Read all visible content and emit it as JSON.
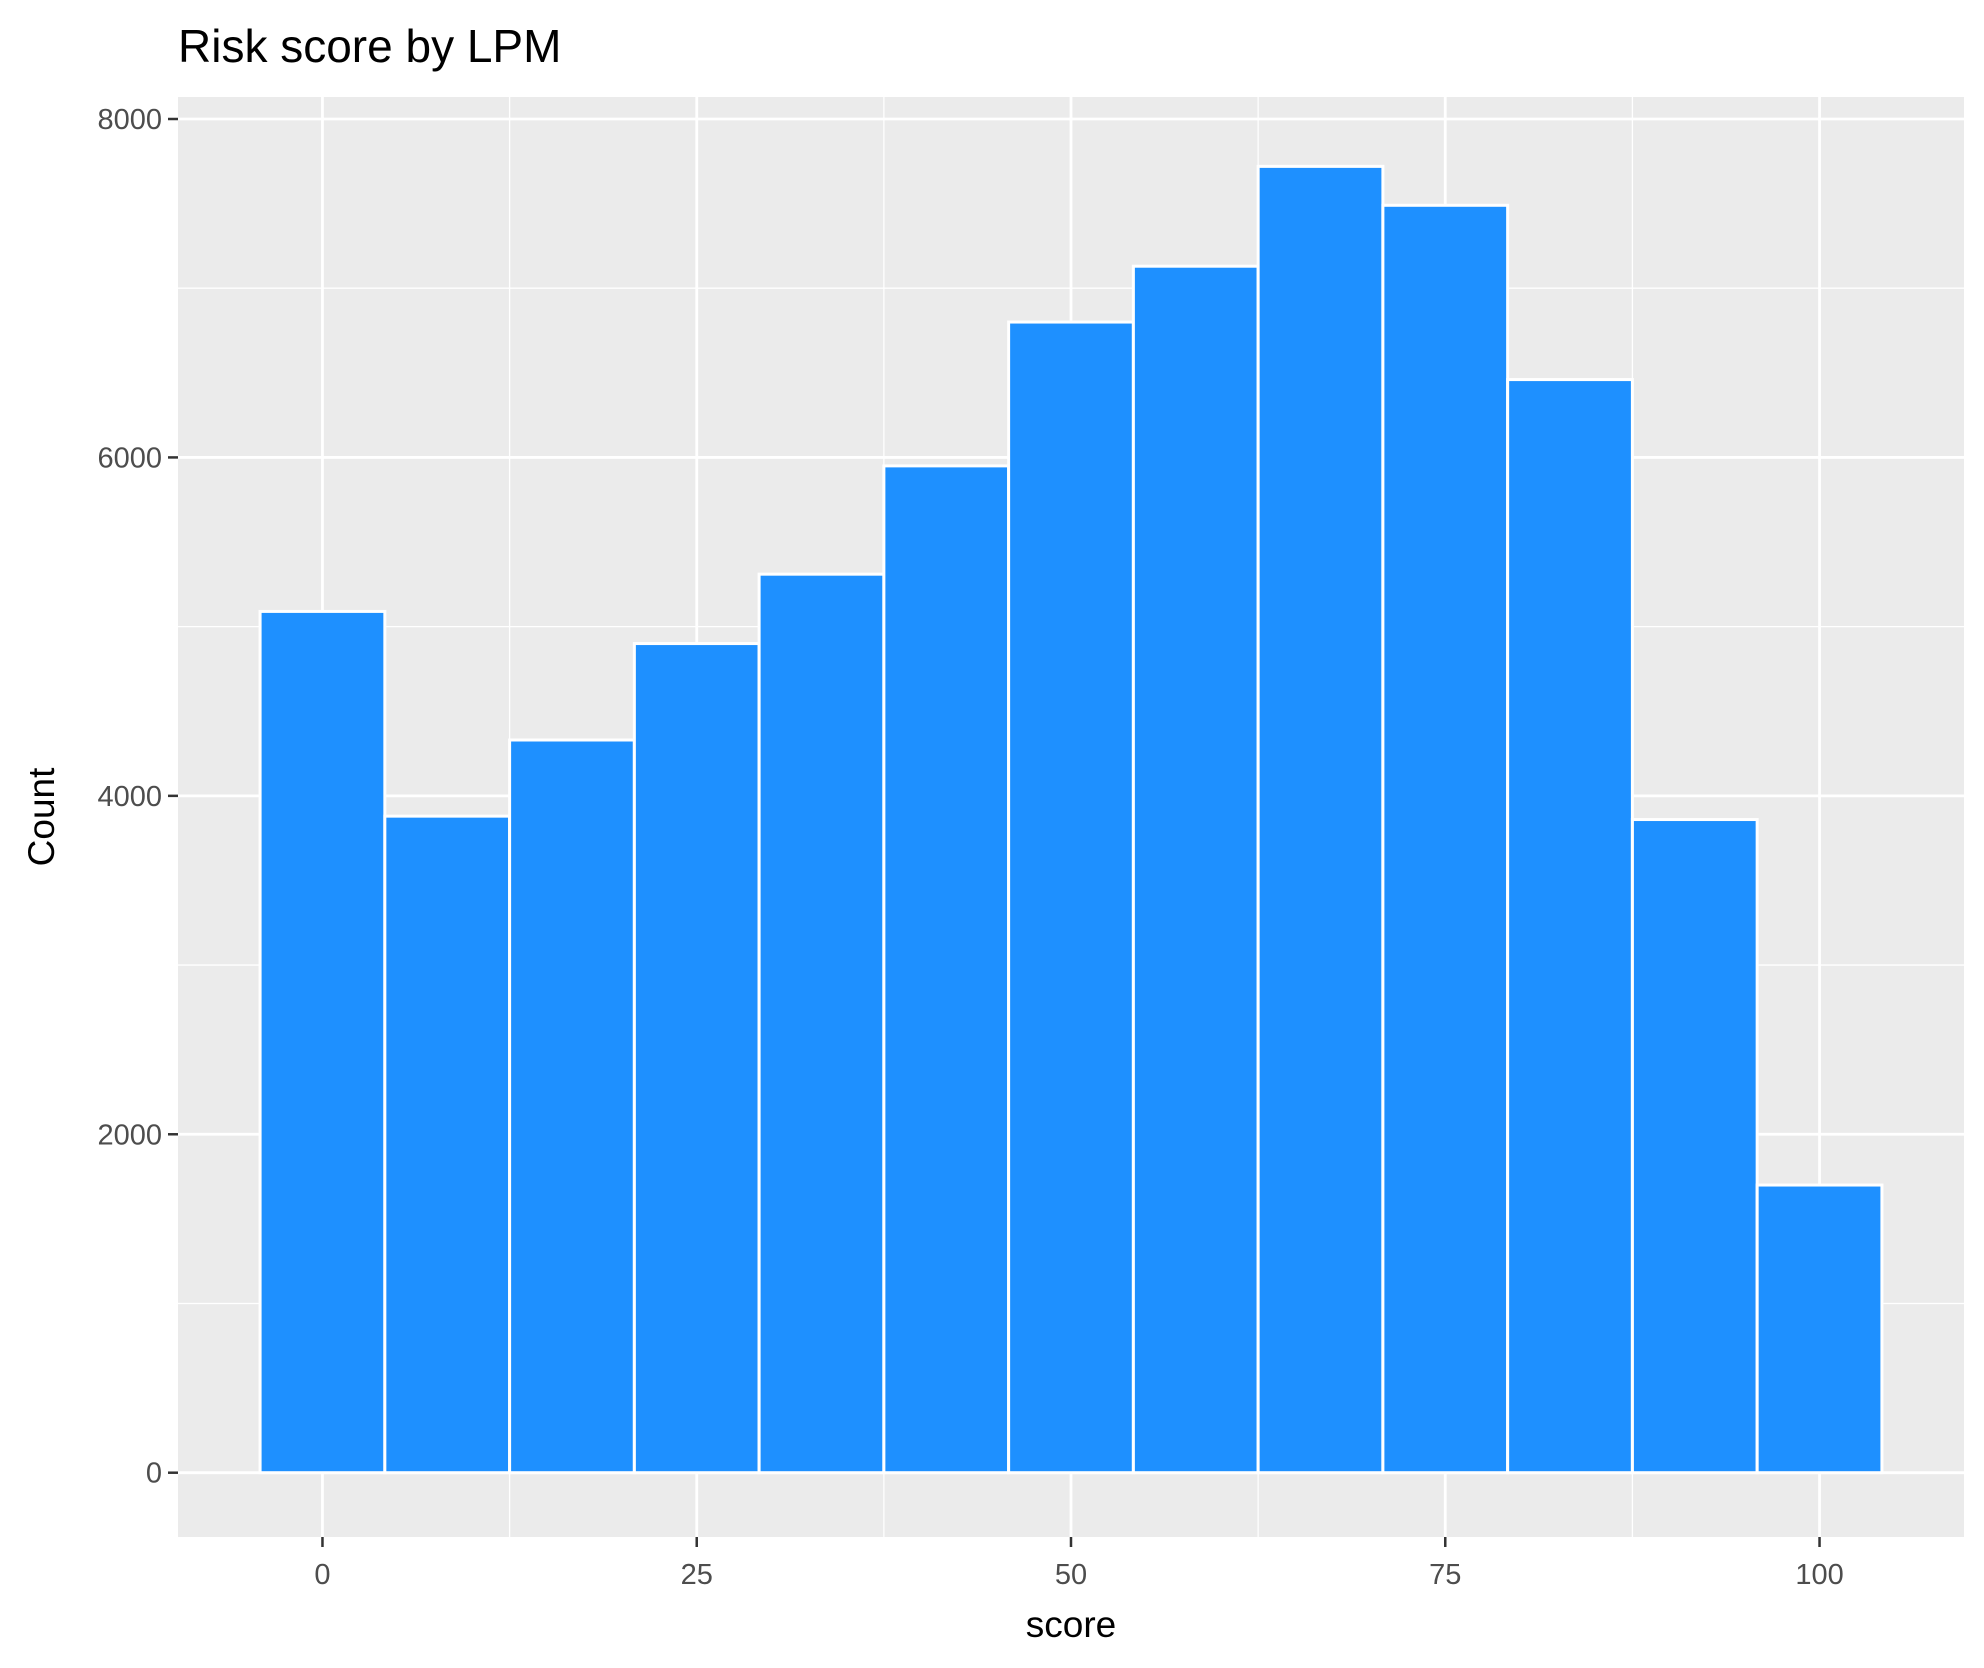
{
  "chart_data": {
    "type": "bar",
    "title": "Risk score by LPM",
    "xlabel": "score",
    "ylabel": "Count",
    "xlim": [
      -9.65,
      109.65
    ],
    "ylim": [
      -380,
      8130
    ],
    "x_ticks": [
      0,
      25,
      50,
      75,
      100
    ],
    "y_ticks": [
      0,
      2000,
      4000,
      6000,
      8000
    ],
    "bin_width": 8.333,
    "bins": [
      {
        "center": 0.0,
        "value": 5090
      },
      {
        "center": 8.333,
        "value": 3880
      },
      {
        "center": 16.667,
        "value": 4330
      },
      {
        "center": 25.0,
        "value": 4900
      },
      {
        "center": 33.333,
        "value": 5310
      },
      {
        "center": 41.667,
        "value": 5950
      },
      {
        "center": 50.0,
        "value": 6800
      },
      {
        "center": 58.333,
        "value": 7130
      },
      {
        "center": 66.667,
        "value": 7720
      },
      {
        "center": 75.0,
        "value": 7490
      },
      {
        "center": 83.333,
        "value": 6460
      },
      {
        "center": 91.667,
        "value": 3860
      },
      {
        "center": 100.0,
        "value": 1700
      }
    ],
    "grid": true,
    "colors": {
      "bar_fill": "#1e90ff",
      "bar_outline": "#ffffff",
      "panel_background": "#ebebeb",
      "grid": "#ffffff"
    }
  }
}
